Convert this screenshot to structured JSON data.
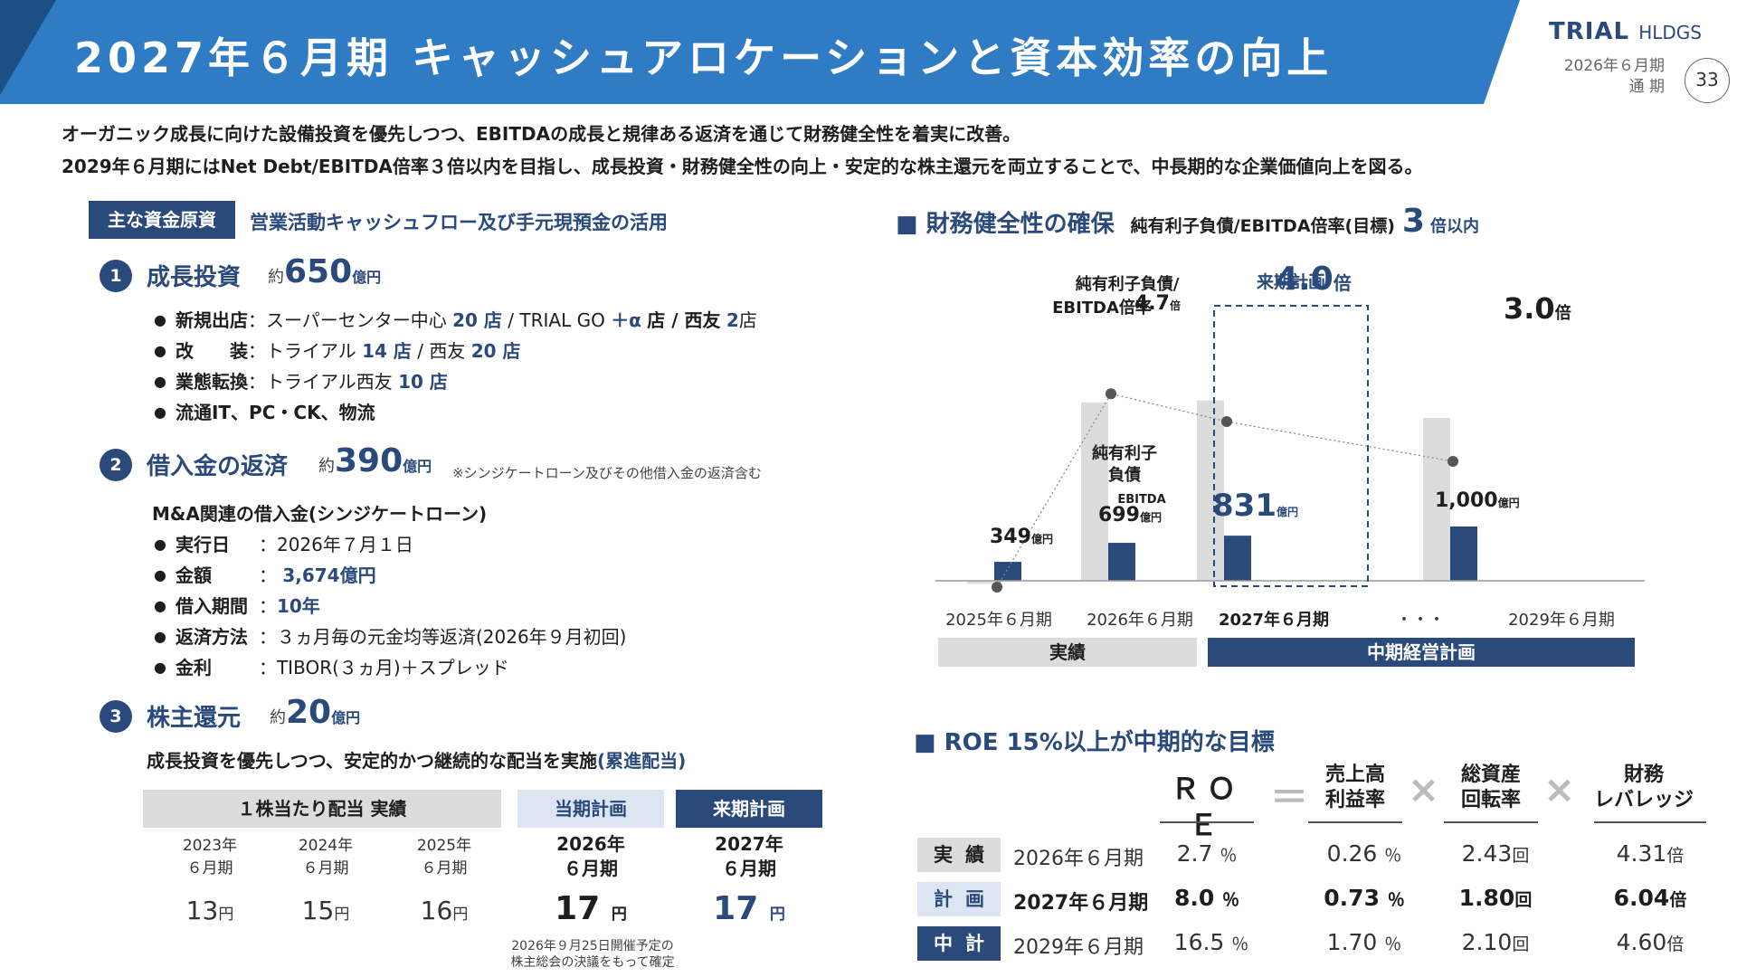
{
  "header": {
    "title": "2027年６月期 キャッシュアロケーションと資本効率の向上",
    "logo_main": "TRIAL",
    "logo_sub": "HLDGS",
    "period_line1": "2026年６月期",
    "period_line2": "通 期",
    "page_number": "33",
    "banner_color": "#2f7cc4"
  },
  "intro": {
    "line1": "オーガニック成長に向けた設備投資を優先しつつ、EBITDAの成長と規律ある返済を通じて財務健全性を着実に改善。",
    "line2": "2029年６月期にはNet Debt/EBITDA倍率３倍以内を目指し、成長投資・財務健全性の向上・安定的な株主還元を両立することで、中長期的な企業価値向上を図る。"
  },
  "funding": {
    "tag": "主な資金原資",
    "desc": "営業活動キャッシュフロー及び手元現預金の活用"
  },
  "growth": {
    "num": "1",
    "title": "成長投資",
    "approx": "約",
    "amount": "650",
    "unit": "億円",
    "items": [
      {
        "key": "新規出店",
        "sep": "：",
        "t1": "スーパーセンター中心",
        "v1": "20 店",
        "t2": " / TRIAL GO",
        "v2": "＋α",
        "t3": "店 / 西友",
        "v3": "2",
        "t4": "店"
      },
      {
        "key": "改　　装",
        "sep": "：",
        "t1": "トライアル",
        "v1": "14 店",
        "t2": " / 西友",
        "v2": "20 店"
      },
      {
        "key": "業態転換",
        "sep": "：",
        "t1": "トライアル西友",
        "v1": "10 店"
      },
      {
        "key": "流通IT、PC・CK、物流"
      }
    ]
  },
  "repay": {
    "num": "2",
    "title": "借入金の返済",
    "approx": "約",
    "amount": "390",
    "unit": "億円",
    "note": "※シンジケートローン及びその他借入金の返済含む",
    "subtitle": "M&A関連の借入金(シンジケートローン)",
    "rows": [
      {
        "key": "実行日",
        "val": "：2026年７月１日"
      },
      {
        "key": "金額",
        "val": "：",
        "hl": "3,674億円"
      },
      {
        "key": "借入期間",
        "val": "：",
        "hl": "10年"
      },
      {
        "key": "返済方法",
        "val": "：３ヵ月毎の元金均等返済(2026年９月初回)"
      },
      {
        "key": "金利",
        "val": "：TIBOR(３ヵ月)＋スプレッド"
      }
    ]
  },
  "return": {
    "num": "3",
    "title": "株主還元",
    "approx": "約",
    "amount": "20",
    "unit": "億円",
    "desc_main": "成長投資を優先しつつ、安定的かつ継続的な配当を実施",
    "desc_hl": "(累進配当)"
  },
  "dividend": {
    "head_actual": "１株当たり配当 実績",
    "head_current": "当期計画",
    "head_next": "来期計画",
    "cols": [
      {
        "y1": "2023年",
        "y2": "６月期",
        "value": "13",
        "unit": "円"
      },
      {
        "y1": "2024年",
        "y2": "６月期",
        "value": "15",
        "unit": "円"
      },
      {
        "y1": "2025年",
        "y2": "６月期",
        "value": "16",
        "unit": "円"
      },
      {
        "y1": "2026年",
        "y2": "６月期",
        "value": "17",
        "unit": "円"
      },
      {
        "y1": "2027年",
        "y2": "６月期",
        "value": "17",
        "unit": "円"
      }
    ],
    "note1": "2026年９月25日開催予定の",
    "note2": "株主総会の決議をもって確定"
  },
  "health": {
    "title": "■ 財務健全性の確保",
    "sub": "純有利子負債/EBITDA倍率(目標)",
    "target": "3",
    "target_unit": "倍以内"
  },
  "chart_data": {
    "type": "bar",
    "categories": [
      "2025年６月期",
      "2026年６月期",
      "2027年６月期",
      "・・・",
      "2029年６月期"
    ],
    "series": [
      {
        "name": "純有利子負債",
        "values": [
          -57,
          3285,
          3324,
          null,
          3000
        ]
      },
      {
        "name": "EBITDA",
        "values": [
          349,
          699,
          831,
          null,
          1000
        ]
      }
    ],
    "ratio": [
      -0.16,
      4.7,
      4.0,
      null,
      3.0
    ],
    "ratio_labels": [
      "4.7",
      "4.0",
      "3.0"
    ],
    "ratio_unit": "倍",
    "value_labels": [
      "349",
      "699",
      "831",
      "1,000"
    ],
    "value_unit": "億円",
    "annotations": {
      "ratio_label_line1": "純有利子負債/",
      "ratio_label_line2": "EBITDA倍率",
      "debt_label_line1": "純有利子",
      "debt_label_line2": "負債",
      "ebitda_label": "EBITDA",
      "next_plan": "来期計画",
      "actual_group": "実績",
      "plan_group": "中期経営計画"
    },
    "colors": {
      "debt": "#dcdcdc",
      "ebitda": "#2a4a7c",
      "group_plan": "#2a4a7c",
      "group_actual": "#dcdcdc"
    }
  },
  "roe": {
    "title": "■ ROE 15%以上が中期的な目標",
    "h_roe": "ＲＯＥ",
    "eq": "＝",
    "times": "×",
    "h_margin_1": "売上高",
    "h_margin_2": "利益率",
    "h_turnover_1": "総資産",
    "h_turnover_2": "回転率",
    "h_leverage_1": "財務",
    "h_leverage_2": "レバレッジ",
    "rows": [
      {
        "label": "実績",
        "period": "2026年６月期",
        "roe": "2.7",
        "pct": "％",
        "margin": "0.26",
        "pct2": "％",
        "turnover": "2.43",
        "kai": "回",
        "leverage": "4.31",
        "bai": "倍",
        "label_bg": "#dcdcdc",
        "label_color": "#1e1e1e"
      },
      {
        "label": "計画",
        "period": "2027年６月期",
        "roe": "8.0",
        "pct": "％",
        "margin": "0.73",
        "pct2": "％",
        "turnover": "1.80",
        "kai": "回",
        "leverage": "6.04",
        "bai": "倍",
        "label_bg": "#dde4f2",
        "label_color": "#2a4a7c"
      },
      {
        "label": "中計",
        "period": "2029年６月期",
        "roe": "16.5",
        "pct": "％",
        "margin": "1.70",
        "pct2": "％",
        "turnover": "2.10",
        "kai": "回",
        "leverage": "4.60",
        "bai": "倍",
        "label_bg": "#2a4a7c",
        "label_color": "#ffffff"
      }
    ]
  }
}
